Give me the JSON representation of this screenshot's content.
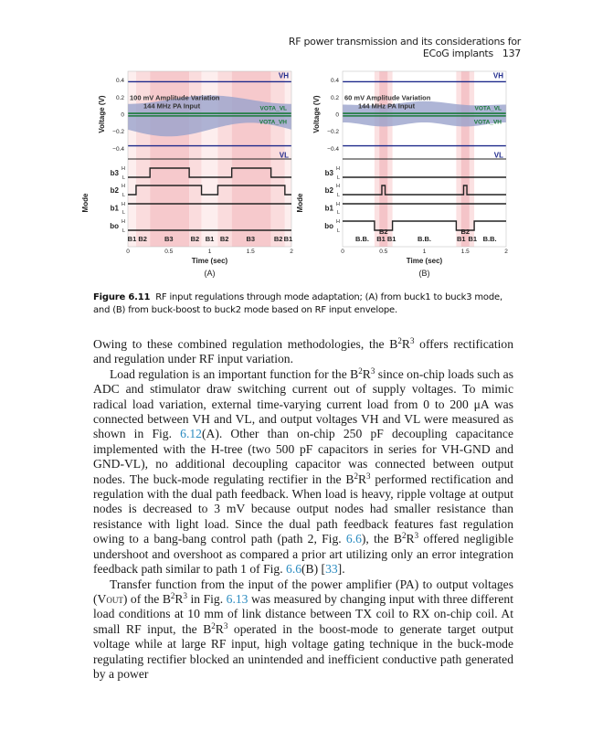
{
  "header": {
    "running_title": "RF power transmission and its considerations for ECoG implants",
    "page_number": "137"
  },
  "figure": {
    "panels": [
      {
        "label": "(A)",
        "ylabel_top": "Voltage (V)",
        "ylabel_bottom": "Mode",
        "xlabel": "Time (sec)",
        "yticks": [
          "0.4",
          "0.2",
          "0",
          "−0.2",
          "−0.4"
        ],
        "xticks": [
          "0",
          "0.5",
          "1",
          "1.5",
          "2"
        ],
        "annotation_line1": "100 mV Amplitude Variation",
        "annotation_line2": "144 MHz PA Input",
        "vh": "VH",
        "vl": "VL",
        "vota_vl": "VOTA_VL",
        "vota_vh": "VOTA_VH",
        "bits": [
          "b3",
          "b2",
          "b1",
          "bo"
        ],
        "h": "H",
        "l": "L",
        "mode_labels": [
          {
            "t": 0.05,
            "text": "B1"
          },
          {
            "t": 0.18,
            "text": "B2"
          },
          {
            "t": 0.5,
            "text": "B3"
          },
          {
            "t": 0.82,
            "text": "B2"
          },
          {
            "t": 1.0,
            "text": "B1"
          },
          {
            "t": 1.18,
            "text": "B2"
          },
          {
            "t": 1.5,
            "text": "B3"
          },
          {
            "t": 1.84,
            "text": "B2"
          },
          {
            "t": 1.96,
            "text": "B1"
          }
        ],
        "bands": [
          [
            0,
            0.1,
            "B1"
          ],
          [
            0.1,
            0.27,
            "B2"
          ],
          [
            0.27,
            0.75,
            "B3"
          ],
          [
            0.75,
            0.9,
            "B2"
          ],
          [
            0.9,
            1.1,
            "B1"
          ],
          [
            1.1,
            1.27,
            "B2"
          ],
          [
            1.27,
            1.75,
            "B3"
          ],
          [
            1.75,
            1.92,
            "B2"
          ],
          [
            1.92,
            2,
            "B1"
          ]
        ],
        "waveforms": {
          "b3": [
            [
              0,
              0
            ],
            [
              0.27,
              1
            ],
            [
              0.75,
              0
            ],
            [
              1.27,
              1
            ],
            [
              1.75,
              0
            ]
          ],
          "b2": [
            [
              0,
              0
            ],
            [
              0.1,
              1
            ],
            [
              0.9,
              0
            ],
            [
              1.1,
              1
            ],
            [
              1.92,
              0
            ]
          ],
          "b1": [
            [
              0,
              1
            ]
          ],
          "bo": [
            [
              0,
              0
            ]
          ]
        },
        "envelope_mv": 100
      },
      {
        "label": "(B)",
        "ylabel_top": "Voltage (V)",
        "ylabel_bottom": "Mode",
        "xlabel": "Time (sec)",
        "yticks": [
          "0.4",
          "0.2",
          "0",
          "−0.2",
          "−0.4"
        ],
        "xticks": [
          "0",
          "0.5",
          "1",
          "1.5",
          "2"
        ],
        "annotation_line1": "60 mV Amplitude Variation",
        "annotation_line2": "144 MHz PA Input",
        "vh": "VH",
        "vl": "VL",
        "vota_vl": "VOTA_VL",
        "vota_vh": "VOTA_VH",
        "bits": [
          "b3",
          "b2",
          "b1",
          "bo"
        ],
        "h": "H",
        "l": "L",
        "mode_labels": [
          {
            "t": 0.24,
            "text": "B.B."
          },
          {
            "t": 0.47,
            "text": "B1"
          },
          {
            "t": 0.5,
            "text": "B2",
            "upper": true
          },
          {
            "t": 0.6,
            "text": "B1"
          },
          {
            "t": 1.0,
            "text": "B.B."
          },
          {
            "t": 1.45,
            "text": "B1"
          },
          {
            "t": 1.5,
            "text": "B2",
            "upper": true
          },
          {
            "t": 1.59,
            "text": "B1"
          },
          {
            "t": 1.8,
            "text": "B.B."
          }
        ],
        "bands": [
          [
            0.39,
            0.61,
            "B1"
          ],
          [
            0.45,
            0.55,
            "B2"
          ],
          [
            1.39,
            1.61,
            "B1"
          ],
          [
            1.45,
            1.55,
            "B2"
          ]
        ],
        "waveforms": {
          "b3": [
            [
              0,
              0
            ]
          ],
          "b2": [
            [
              0,
              0
            ],
            [
              0.48,
              1
            ],
            [
              0.52,
              0
            ],
            [
              1.48,
              1
            ],
            [
              1.52,
              0
            ]
          ],
          "b1": [
            [
              0,
              1
            ]
          ],
          "bo": [
            [
              0,
              1
            ],
            [
              0.39,
              0
            ],
            [
              0.61,
              1
            ],
            [
              1.39,
              0
            ],
            [
              1.61,
              1
            ]
          ]
        },
        "envelope_mv": 60
      }
    ],
    "colors": {
      "vh_vl": "#1f2a8c",
      "vota": "#1a7a3a",
      "envelope": "#9aa3cc",
      "band_b3": "#f6c9cc",
      "band_b2": "#fadcdd",
      "band_b1": "#fdeeee"
    },
    "caption_label": "Figure 6.11",
    "caption_text": "RF input regulations through mode adaptation; (A) from buck1 to buck3 mode, and (B) from buck-boost to buck2 mode based on RF input envelope."
  },
  "body": {
    "p1": [
      "Owing to these combined regulation methodologies, the B",
      "2",
      "R",
      "3",
      " offers rectification and regulation under RF input variation."
    ],
    "p2a": "Load regulation is an important function for the B",
    "p2b": " since on-chip loads such as ADC and stimulator draw switching current out of supply voltages. To mimic radical load variation, external time-varying current load from 0 to 200 μA was connected between VH and VL, and output voltages VH and VL were measured as shown in Fig. ",
    "p2_ref1": "6.12",
    "p2c": "(A). Other than on-chip 250 pF decoupling capacitance implemented with the H-tree (two 500 pF capacitors in series for VH-GND and GND-VL), no additional decoupling capacitor was connected between output nodes. The buck-mode regulating rectifier in the B",
    "p2d": " performed rectification and regulation with the dual path feedback. When load is heavy, ripple voltage at output nodes is decreased to 3 mV because output nodes had smaller resistance than resistance with light load. Since the dual path feedback features fast regulation owing to a bang-bang control path (path 2, Fig. ",
    "p2_ref2": "6.6",
    "p2e": "), the B",
    "p2f": " offered negligible undershoot and overshoot as compared a prior art utilizing only an error integration feedback path similar to path 1 of Fig. ",
    "p2_ref3": "6.6",
    "p2g": "(B) [",
    "p2_ref4": "33",
    "p2h": "].",
    "p3a": "Transfer function from the input of the power amplifier (PA) to output voltages (V",
    "p3_sub": "OUT",
    "p3b": ") of the B",
    "p3c": " in Fig. ",
    "p3_ref1": "6.13",
    "p3d": " was measured by changing input with three different load conditions at 10 mm of link distance between TX coil to RX on-chip coil. At small RF input, the B",
    "p3e": " operated in the boost-mode to generate target output voltage while at large RF input, high voltage gating technique in the buck-mode regulating rectifier blocked an unintended and inefficient conductive path generated by a power",
    "sup2": "2",
    "R": "R",
    "sup3": "3"
  }
}
